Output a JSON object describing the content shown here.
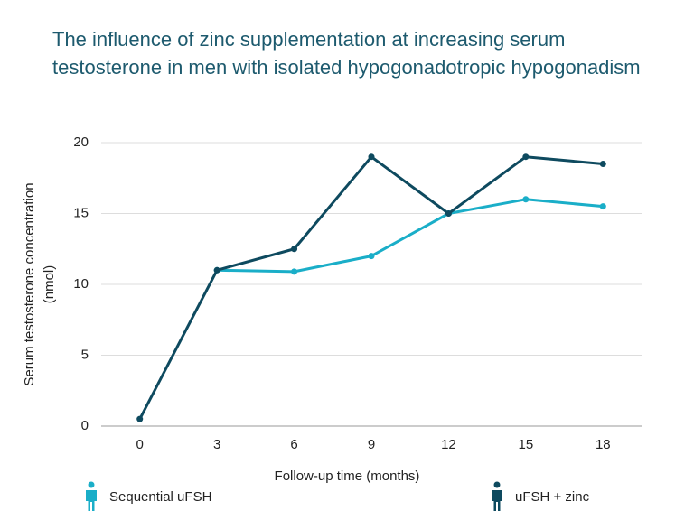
{
  "chart_data": {
    "type": "line",
    "title": "The influence of zinc supplementation at increasing serum testosterone in men with isolated hypogonadotropic hypogonadism",
    "x_label": "Follow-up time (months)",
    "y_label": [
      "Serum testosterone concentration",
      "(nmol)"
    ],
    "x": [
      0,
      3,
      6,
      9,
      12,
      15,
      18
    ],
    "series": [
      {
        "name": "Sequential uFSH",
        "color": "#1aaec8",
        "values": [
          null,
          11,
          10.9,
          12,
          15,
          16,
          15.5
        ]
      },
      {
        "name": "uFSH + zinc",
        "color": "#0e4a5f",
        "values": [
          0.5,
          11,
          12.5,
          19,
          15,
          19,
          18.5
        ]
      }
    ],
    "xlim": [
      -1.5,
      19.5
    ],
    "xticks": [
      0,
      3,
      6,
      9,
      12,
      15,
      18
    ],
    "ylim": [
      0,
      20
    ],
    "yticks": [
      0,
      5,
      10,
      15,
      20
    ],
    "grid": true
  }
}
